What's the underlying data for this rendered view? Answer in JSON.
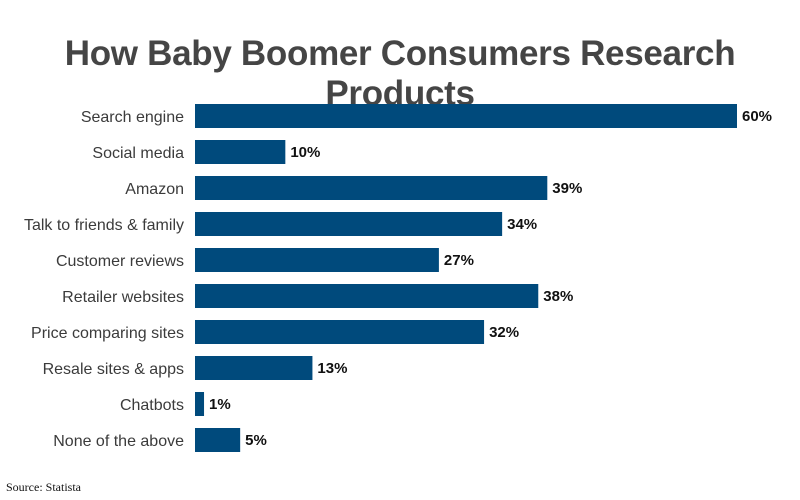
{
  "chart_data": {
    "type": "bar",
    "orientation": "horizontal",
    "title": "How Baby Boomer Consumers Research Products",
    "categories": [
      "Search engine",
      "Social media",
      "Amazon",
      "Talk to friends & family",
      "Customer reviews",
      "Retailer websites",
      "Price comparing sites",
      "Resale sites & apps",
      "Chatbots",
      "None of the above"
    ],
    "values": [
      60,
      10,
      39,
      34,
      27,
      38,
      32,
      13,
      1,
      5
    ],
    "value_labels": [
      "60%",
      "10%",
      "39%",
      "34%",
      "27%",
      "38%",
      "32%",
      "13%",
      "1%",
      "5%"
    ],
    "xlim": [
      0,
      60
    ],
    "grid": false,
    "legend": "none",
    "bar_color": "#004a7c",
    "source": "Source: Statista"
  }
}
